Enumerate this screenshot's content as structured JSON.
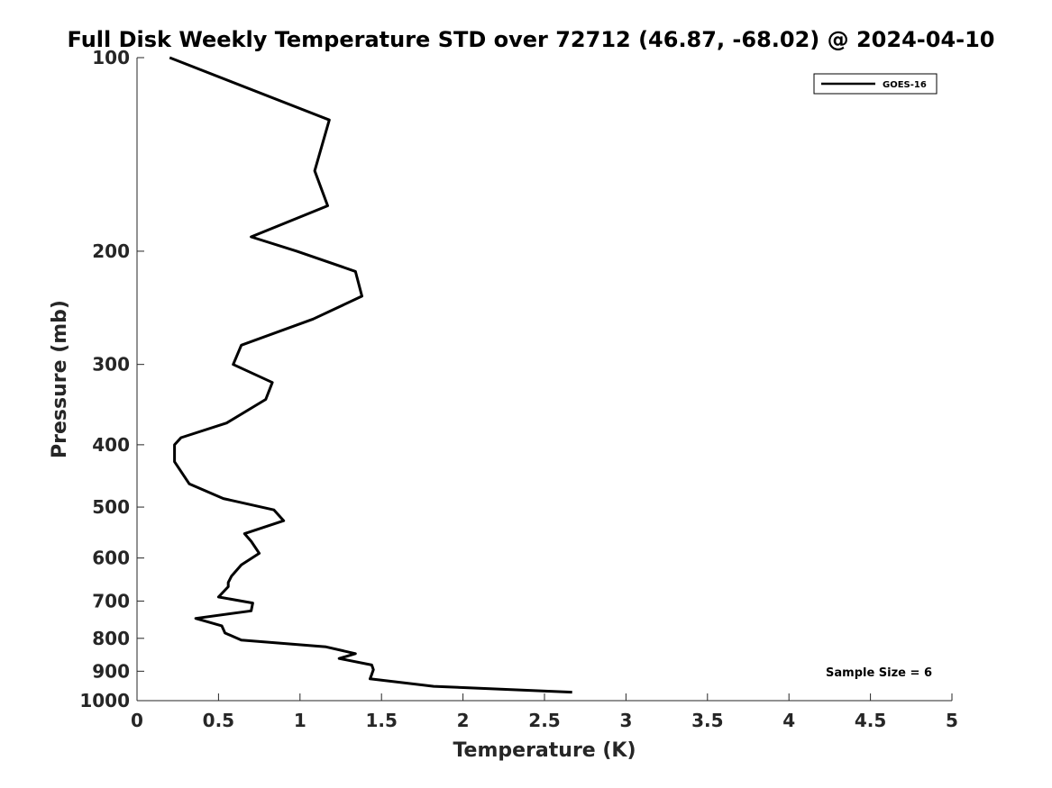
{
  "chart_data": {
    "type": "line",
    "title": "Full Disk Weekly Temperature STD over 72712 (46.87, -68.02) @ 2024-04-10",
    "xlabel": "Temperature (K)",
    "ylabel": "Pressure (mb)",
    "xlim": [
      0,
      5
    ],
    "ylim": [
      100,
      1000
    ],
    "y_scale": "log",
    "y_reversed": true,
    "x_ticks": [
      "0",
      "0.5",
      "1",
      "1.5",
      "2",
      "2.5",
      "3",
      "3.5",
      "4",
      "4.5",
      "5"
    ],
    "y_ticks": [
      "100",
      "200",
      "300",
      "400",
      "500",
      "600",
      "700",
      "800",
      "900",
      "1000"
    ],
    "grid": false,
    "legend_position": "top-right",
    "annotation": "Sample Size = 6",
    "series": [
      {
        "name": "GOES-16",
        "color": "#000000",
        "points": [
          [
            0.2,
            100
          ],
          [
            1.18,
            125
          ],
          [
            1.09,
            150
          ],
          [
            1.17,
            170
          ],
          [
            0.7,
            190
          ],
          [
            0.98,
            200
          ],
          [
            1.34,
            215
          ],
          [
            1.38,
            235
          ],
          [
            1.08,
            255
          ],
          [
            0.64,
            280
          ],
          [
            0.59,
            300
          ],
          [
            0.83,
            320
          ],
          [
            0.79,
            340
          ],
          [
            0.55,
            370
          ],
          [
            0.27,
            390
          ],
          [
            0.23,
            400
          ],
          [
            0.23,
            425
          ],
          [
            0.32,
            460
          ],
          [
            0.53,
            485
          ],
          [
            0.84,
            505
          ],
          [
            0.9,
            525
          ],
          [
            0.66,
            550
          ],
          [
            0.7,
            565
          ],
          [
            0.75,
            590
          ],
          [
            0.64,
            615
          ],
          [
            0.58,
            640
          ],
          [
            0.56,
            655
          ],
          [
            0.56,
            665
          ],
          [
            0.5,
            690
          ],
          [
            0.71,
            705
          ],
          [
            0.7,
            725
          ],
          [
            0.36,
            745
          ],
          [
            0.52,
            765
          ],
          [
            0.54,
            785
          ],
          [
            0.64,
            805
          ],
          [
            1.16,
            825
          ],
          [
            1.34,
            845
          ],
          [
            1.24,
            860
          ],
          [
            1.44,
            880
          ],
          [
            1.45,
            895
          ],
          [
            1.44,
            910
          ],
          [
            1.43,
            925
          ],
          [
            1.82,
            950
          ],
          [
            2.67,
            970
          ]
        ]
      }
    ]
  }
}
